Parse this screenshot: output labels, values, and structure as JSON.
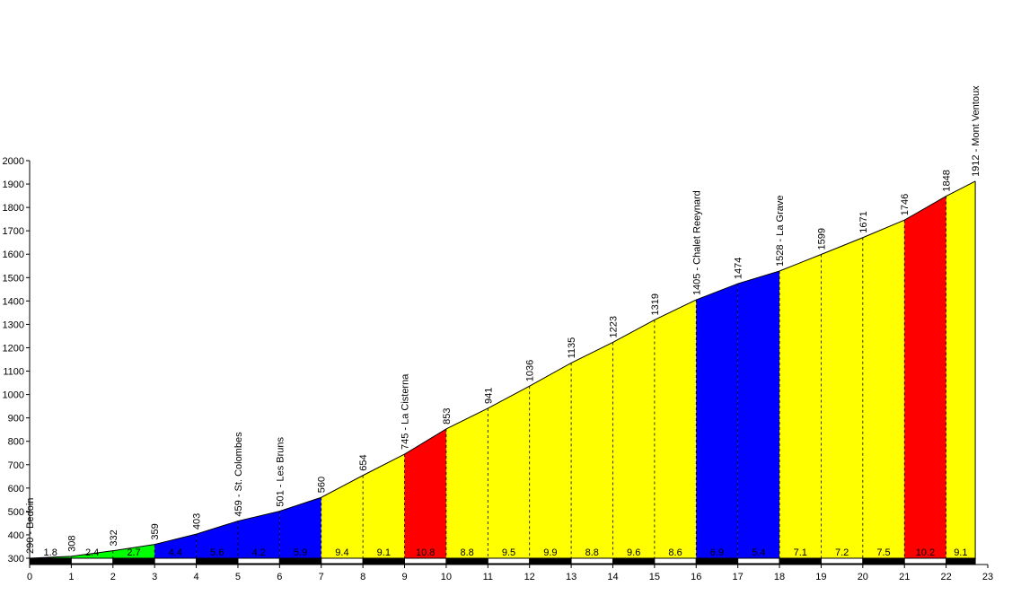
{
  "chart_data": {
    "type": "area",
    "title": "",
    "xlabel": "",
    "ylabel": "",
    "xlim": [
      0,
      23
    ],
    "ylim": [
      300,
      2000
    ],
    "x_ticks": [
      0,
      1,
      2,
      3,
      4,
      5,
      6,
      7,
      8,
      9,
      10,
      11,
      12,
      13,
      14,
      15,
      16,
      17,
      18,
      19,
      20,
      21,
      22,
      23
    ],
    "y_ticks": [
      300,
      400,
      500,
      600,
      700,
      800,
      900,
      1000,
      1100,
      1200,
      1300,
      1400,
      1500,
      1600,
      1700,
      1800,
      1900,
      2000
    ],
    "profile": [
      {
        "km": 0,
        "elev": 290,
        "label": "290 - Bedoin"
      },
      {
        "km": 1,
        "elev": 308,
        "label": "308"
      },
      {
        "km": 2,
        "elev": 332,
        "label": "332"
      },
      {
        "km": 3,
        "elev": 359,
        "label": "359"
      },
      {
        "km": 4,
        "elev": 403,
        "label": "403"
      },
      {
        "km": 5,
        "elev": 459,
        "label": "459 - St. Colombes"
      },
      {
        "km": 6,
        "elev": 501,
        "label": "501 - Les Bruns"
      },
      {
        "km": 7,
        "elev": 560,
        "label": "560"
      },
      {
        "km": 8,
        "elev": 654,
        "label": "654"
      },
      {
        "km": 9,
        "elev": 745,
        "label": "745 - La Cisterna"
      },
      {
        "km": 10,
        "elev": 853,
        "label": "853"
      },
      {
        "km": 11,
        "elev": 941,
        "label": "941"
      },
      {
        "km": 12,
        "elev": 1036,
        "label": "1036"
      },
      {
        "km": 13,
        "elev": 1135,
        "label": "1135"
      },
      {
        "km": 14,
        "elev": 1223,
        "label": "1223"
      },
      {
        "km": 15,
        "elev": 1319,
        "label": "1319"
      },
      {
        "km": 16,
        "elev": 1405,
        "label": "1405 - Chalet Reeynard"
      },
      {
        "km": 17,
        "elev": 1474,
        "label": "1474"
      },
      {
        "km": 18,
        "elev": 1528,
        "label": "1528 - La Grave"
      },
      {
        "km": 19,
        "elev": 1599,
        "label": "1599"
      },
      {
        "km": 20,
        "elev": 1671,
        "label": "1671"
      },
      {
        "km": 21,
        "elev": 1746,
        "label": "1746"
      },
      {
        "km": 22,
        "elev": 1848,
        "label": "1848"
      },
      {
        "km": 22.7,
        "elev": 1912,
        "label": "1912 - Mont Ventoux"
      }
    ],
    "segments": [
      {
        "grade": "1.8",
        "color": "#00ff00"
      },
      {
        "grade": "2.4",
        "color": "#00ff00"
      },
      {
        "grade": "2.7",
        "color": "#00ff00"
      },
      {
        "grade": "4.4",
        "color": "#0000ff"
      },
      {
        "grade": "5.6",
        "color": "#0000ff"
      },
      {
        "grade": "4.2",
        "color": "#0000ff"
      },
      {
        "grade": "5.9",
        "color": "#0000ff"
      },
      {
        "grade": "9.4",
        "color": "#ffff00"
      },
      {
        "grade": "9.1",
        "color": "#ffff00"
      },
      {
        "grade": "10.8",
        "color": "#ff0000"
      },
      {
        "grade": "8.8",
        "color": "#ffff00"
      },
      {
        "grade": "9.5",
        "color": "#ffff00"
      },
      {
        "grade": "9.9",
        "color": "#ffff00"
      },
      {
        "grade": "8.8",
        "color": "#ffff00"
      },
      {
        "grade": "9.6",
        "color": "#ffff00"
      },
      {
        "grade": "8.6",
        "color": "#ffff00"
      },
      {
        "grade": "6.9",
        "color": "#0000ff"
      },
      {
        "grade": "5.4",
        "color": "#0000ff"
      },
      {
        "grade": "7.1",
        "color": "#ffff00"
      },
      {
        "grade": "7.2",
        "color": "#ffff00"
      },
      {
        "grade": "7.5",
        "color": "#ffff00"
      },
      {
        "grade": "10.2",
        "color": "#ff0000"
      },
      {
        "grade": "9.1",
        "color": "#ffff00"
      }
    ]
  }
}
